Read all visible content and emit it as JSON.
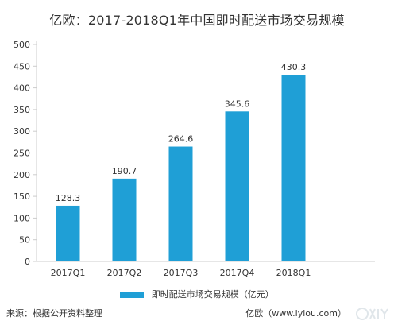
{
  "title": "亿欧：2017-2018Q1年中国即时配送市场交易规模",
  "colors": {
    "bar": "#1f9fd6",
    "axis": "#cccccc",
    "text": "#333333"
  },
  "chart_data": {
    "type": "bar",
    "categories": [
      "2017Q1",
      "2017Q2",
      "2017Q3",
      "2017Q4",
      "2018Q1"
    ],
    "series": [
      {
        "name": "即时配送市场交易规模（亿元）",
        "values": [
          128.3,
          190.7,
          264.6,
          345.6,
          430.3
        ]
      }
    ],
    "data_labels": [
      "128.3",
      "190.7",
      "264.6",
      "345.6",
      "430.3"
    ],
    "y_ticks": [
      "0",
      "50",
      "100",
      "150",
      "200",
      "250",
      "300",
      "350",
      "400",
      "450",
      "500"
    ],
    "ylim": [
      0,
      500
    ],
    "grid": false,
    "legend_position": "bottom"
  },
  "legend": {
    "label": "即时配送市场交易规模（亿元）"
  },
  "footer": {
    "source": "来源：根据公开资料整理",
    "credit": "亿欧（www.iyiou.com）"
  },
  "watermark": {
    "icon": "iyiou-logo-icon"
  }
}
